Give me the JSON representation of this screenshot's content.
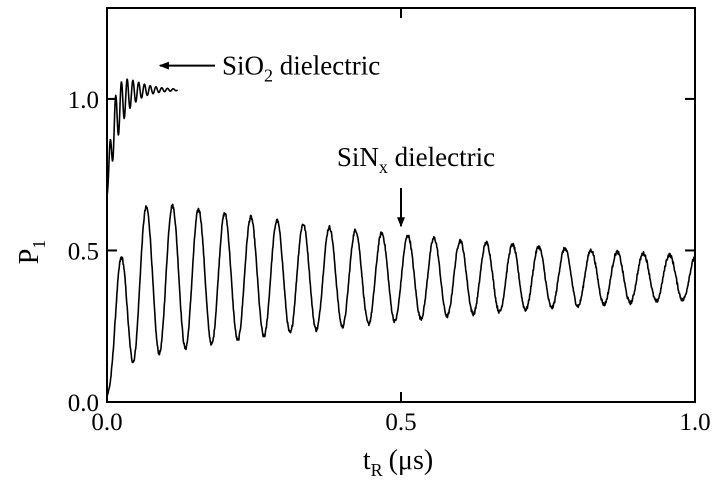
{
  "chart_data": {
    "type": "line",
    "title": "",
    "xlabel": {
      "main": "t",
      "sub": "R",
      "unit": "(μs)"
    },
    "ylabel": {
      "main": "P",
      "sub": "1"
    },
    "xlim": [
      0.0,
      1.0
    ],
    "ylim": [
      0.0,
      1.3
    ],
    "xticks": [
      {
        "value": 0.0,
        "label": "0.0"
      },
      {
        "value": 0.5,
        "label": "0.5"
      },
      {
        "value": 1.0,
        "label": "1.0"
      }
    ],
    "yticks": [
      {
        "value": 0.0,
        "label": "0.0"
      },
      {
        "value": 0.5,
        "label": "0.5"
      },
      {
        "value": 1.0,
        "label": "1.0"
      }
    ],
    "grid": false,
    "legend": "none",
    "series": [
      {
        "name": "SiO2 dielectric",
        "model": "damped_oscillation",
        "x_start": 0.0,
        "x_end": 0.12,
        "initial_value": 0.68,
        "rise_time": 0.012,
        "baseline": 1.03,
        "amplitude": 0.2,
        "period": 0.0098,
        "decay_time": 0.028,
        "noise": 0.0
      },
      {
        "name": "SiNx dielectric",
        "model": "damped_oscillation",
        "x_start": 0.0,
        "x_end": 1.0,
        "initial_value": 0.02,
        "rise_time": 0.02,
        "baseline": 0.41,
        "amplitude": 0.28,
        "period": 0.0445,
        "decay_time": 0.73,
        "noise": 0.012
      }
    ],
    "annotations": [
      {
        "text": "SiO",
        "sub": "2",
        "rest": " dielectric",
        "target": "SiO2 dielectric",
        "arrow_to": [
          0.09,
          1.11
        ]
      },
      {
        "text": "SiN",
        "sub": "x",
        "rest": " dielectric",
        "target": "SiNx dielectric",
        "arrow_to": [
          0.5,
          0.58
        ]
      }
    ]
  }
}
